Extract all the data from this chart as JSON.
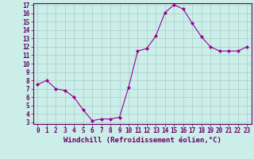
{
  "x": [
    0,
    1,
    2,
    3,
    4,
    5,
    6,
    7,
    8,
    9,
    10,
    11,
    12,
    13,
    14,
    15,
    16,
    17,
    18,
    19,
    20,
    21,
    22,
    23
  ],
  "y": [
    7.5,
    8.0,
    7.0,
    6.8,
    6.0,
    4.5,
    3.2,
    3.4,
    3.4,
    3.6,
    7.2,
    11.5,
    11.8,
    13.3,
    16.1,
    17.0,
    16.5,
    14.8,
    13.2,
    12.0,
    11.5,
    11.5,
    11.5,
    12.0
  ],
  "line_color": "#990099",
  "marker": "D",
  "marker_size": 2,
  "bg_color": "#cceee8",
  "grid_color": "#aacccc",
  "xlabel": "Windchill (Refroidissement éolien,°C)",
  "ylim": [
    3,
    17
  ],
  "xlim": [
    -0.5,
    23.5
  ],
  "yticks": [
    3,
    4,
    5,
    6,
    7,
    8,
    9,
    10,
    11,
    12,
    13,
    14,
    15,
    16,
    17
  ],
  "xticks": [
    0,
    1,
    2,
    3,
    4,
    5,
    6,
    7,
    8,
    9,
    10,
    11,
    12,
    13,
    14,
    15,
    16,
    17,
    18,
    19,
    20,
    21,
    22,
    23
  ],
  "tick_fontsize": 5.5,
  "xlabel_fontsize": 6.5,
  "axis_color": "#660066",
  "spine_color": "#660066"
}
